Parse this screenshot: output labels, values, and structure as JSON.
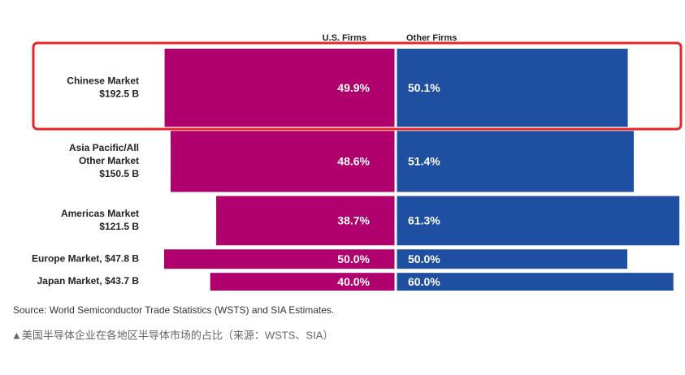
{
  "chart_data": {
    "type": "diverging_bar",
    "categories": [
      [
        "Chinese Market",
        "$192.5 B"
      ],
      [
        "Asia Pacific/All",
        "Other Market",
        "$150.5 B"
      ],
      [
        "Americas Market",
        "$121.5 B"
      ],
      [
        "Europe Market, $47.8 B"
      ],
      [
        "Japan Market, $43.7 B"
      ]
    ],
    "sizes": [
      192.5,
      150.5,
      121.5,
      47.8,
      43.7
    ],
    "series": [
      {
        "name": "U.S. Firms",
        "color": "#b0006e",
        "values": [
          49.9,
          48.6,
          38.7,
          50.0,
          40.0
        ],
        "value_labels": [
          "49.9%",
          "48.6%",
          "38.7%",
          "50.0%",
          "40.0%"
        ]
      },
      {
        "name": "Other Firms",
        "color": "#1f4fa0",
        "values": [
          50.1,
          51.4,
          61.3,
          50.0,
          60.0
        ],
        "value_labels": [
          "50.1%",
          "51.4%",
          "61.3%",
          "50.0%",
          "60.0%"
        ]
      }
    ],
    "source": "Source: World Semiconductor Trade Statistics (WSTS) and SIA Estimates.",
    "caption": "▲美国半导体企业在各地区半导体市场的占比（来源：WSTS、SIA）"
  }
}
